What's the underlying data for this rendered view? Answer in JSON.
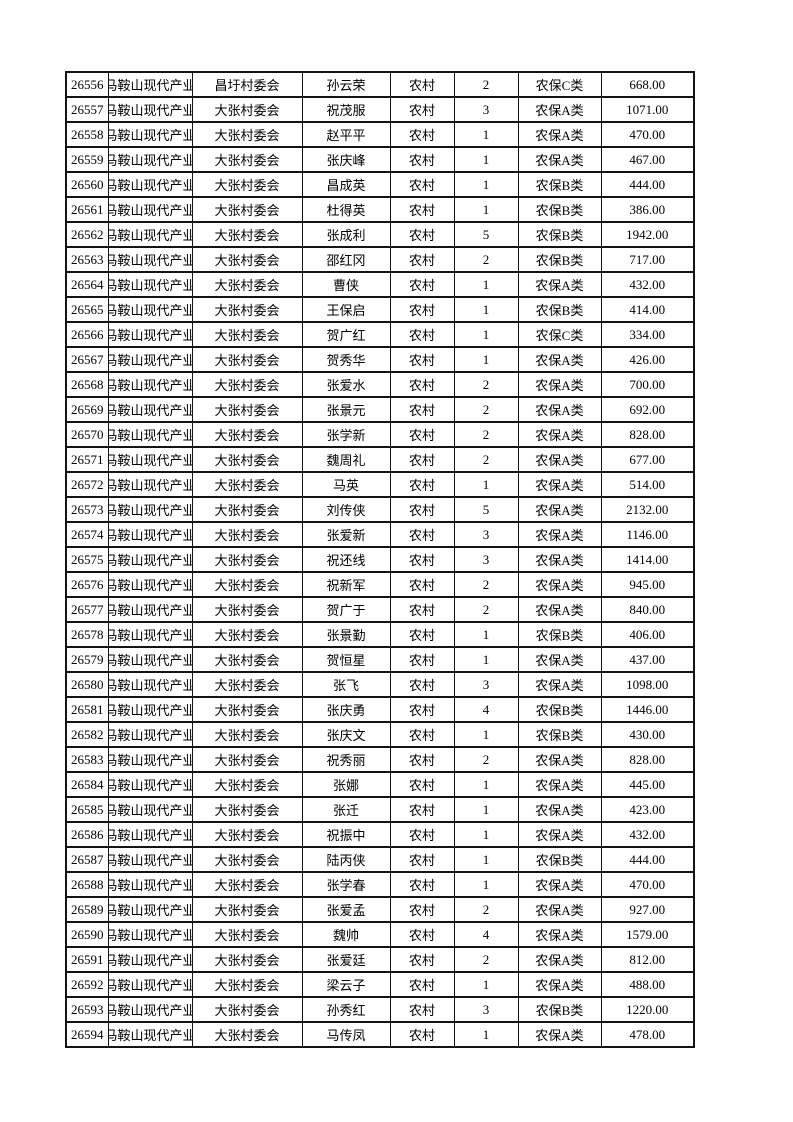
{
  "page": {
    "background_color": "#ffffff",
    "border_color": "#141414",
    "description": "Print-preview page of a rural social insurance roster table"
  },
  "table": {
    "columns": [
      {
        "key": "record-id",
        "label": ""
      },
      {
        "key": "park-name",
        "label": ""
      },
      {
        "key": "village-committee",
        "label": ""
      },
      {
        "key": "person-name",
        "label": ""
      },
      {
        "key": "household-type",
        "label": ""
      },
      {
        "key": "person-count",
        "label": ""
      },
      {
        "key": "insurance-category",
        "label": ""
      },
      {
        "key": "amount",
        "label": ""
      }
    ],
    "park_name_full": "马鞍山现代产业",
    "rows": [
      [
        "26556",
        "马鞍山现代产业",
        "昌圩村委会",
        "孙云荣",
        "农村",
        "2",
        "农保C类",
        "668.00"
      ],
      [
        "26557",
        "马鞍山现代产业",
        "大张村委会",
        "祝茂服",
        "农村",
        "3",
        "农保A类",
        "1071.00"
      ],
      [
        "26558",
        "马鞍山现代产业",
        "大张村委会",
        "赵平平",
        "农村",
        "1",
        "农保A类",
        "470.00"
      ],
      [
        "26559",
        "马鞍山现代产业",
        "大张村委会",
        "张庆峰",
        "农村",
        "1",
        "农保A类",
        "467.00"
      ],
      [
        "26560",
        "马鞍山现代产业",
        "大张村委会",
        "昌成英",
        "农村",
        "1",
        "农保B类",
        "444.00"
      ],
      [
        "26561",
        "马鞍山现代产业",
        "大张村委会",
        "杜得英",
        "农村",
        "1",
        "农保B类",
        "386.00"
      ],
      [
        "26562",
        "马鞍山现代产业",
        "大张村委会",
        "张成利",
        "农村",
        "5",
        "农保B类",
        "1942.00"
      ],
      [
        "26563",
        "马鞍山现代产业",
        "大张村委会",
        "邵红冈",
        "农村",
        "2",
        "农保B类",
        "717.00"
      ],
      [
        "26564",
        "马鞍山现代产业",
        "大张村委会",
        "曹侠",
        "农村",
        "1",
        "农保A类",
        "432.00"
      ],
      [
        "26565",
        "马鞍山现代产业",
        "大张村委会",
        "王保启",
        "农村",
        "1",
        "农保B类",
        "414.00"
      ],
      [
        "26566",
        "马鞍山现代产业",
        "大张村委会",
        "贺广红",
        "农村",
        "1",
        "农保C类",
        "334.00"
      ],
      [
        "26567",
        "马鞍山现代产业",
        "大张村委会",
        "贺秀华",
        "农村",
        "1",
        "农保A类",
        "426.00"
      ],
      [
        "26568",
        "马鞍山现代产业",
        "大张村委会",
        "张爱水",
        "农村",
        "2",
        "农保A类",
        "700.00"
      ],
      [
        "26569",
        "马鞍山现代产业",
        "大张村委会",
        "张景元",
        "农村",
        "2",
        "农保A类",
        "692.00"
      ],
      [
        "26570",
        "马鞍山现代产业",
        "大张村委会",
        "张学新",
        "农村",
        "2",
        "农保A类",
        "828.00"
      ],
      [
        "26571",
        "马鞍山现代产业",
        "大张村委会",
        "魏周礼",
        "农村",
        "2",
        "农保A类",
        "677.00"
      ],
      [
        "26572",
        "马鞍山现代产业",
        "大张村委会",
        "马英",
        "农村",
        "1",
        "农保A类",
        "514.00"
      ],
      [
        "26573",
        "马鞍山现代产业",
        "大张村委会",
        "刘传侠",
        "农村",
        "5",
        "农保A类",
        "2132.00"
      ],
      [
        "26574",
        "马鞍山现代产业",
        "大张村委会",
        "张爱新",
        "农村",
        "3",
        "农保A类",
        "1146.00"
      ],
      [
        "26575",
        "马鞍山现代产业",
        "大张村委会",
        "祝还线",
        "农村",
        "3",
        "农保A类",
        "1414.00"
      ],
      [
        "26576",
        "马鞍山现代产业",
        "大张村委会",
        "祝新军",
        "农村",
        "2",
        "农保A类",
        "945.00"
      ],
      [
        "26577",
        "马鞍山现代产业",
        "大张村委会",
        "贺广于",
        "农村",
        "2",
        "农保A类",
        "840.00"
      ],
      [
        "26578",
        "马鞍山现代产业",
        "大张村委会",
        "张景勤",
        "农村",
        "1",
        "农保B类",
        "406.00"
      ],
      [
        "26579",
        "马鞍山现代产业",
        "大张村委会",
        "贺恒星",
        "农村",
        "1",
        "农保A类",
        "437.00"
      ],
      [
        "26580",
        "马鞍山现代产业",
        "大张村委会",
        "张飞",
        "农村",
        "3",
        "农保A类",
        "1098.00"
      ],
      [
        "26581",
        "马鞍山现代产业",
        "大张村委会",
        "张庆勇",
        "农村",
        "4",
        "农保B类",
        "1446.00"
      ],
      [
        "26582",
        "马鞍山现代产业",
        "大张村委会",
        "张庆文",
        "农村",
        "1",
        "农保B类",
        "430.00"
      ],
      [
        "26583",
        "马鞍山现代产业",
        "大张村委会",
        "祝秀丽",
        "农村",
        "2",
        "农保A类",
        "828.00"
      ],
      [
        "26584",
        "马鞍山现代产业",
        "大张村委会",
        "张娜",
        "农村",
        "1",
        "农保A类",
        "445.00"
      ],
      [
        "26585",
        "马鞍山现代产业",
        "大张村委会",
        "张迁",
        "农村",
        "1",
        "农保A类",
        "423.00"
      ],
      [
        "26586",
        "马鞍山现代产业",
        "大张村委会",
        "祝振中",
        "农村",
        "1",
        "农保A类",
        "432.00"
      ],
      [
        "26587",
        "马鞍山现代产业",
        "大张村委会",
        "陆丙侠",
        "农村",
        "1",
        "农保B类",
        "444.00"
      ],
      [
        "26588",
        "马鞍山现代产业",
        "大张村委会",
        "张学春",
        "农村",
        "1",
        "农保A类",
        "470.00"
      ],
      [
        "26589",
        "马鞍山现代产业",
        "大张村委会",
        "张爱孟",
        "农村",
        "2",
        "农保A类",
        "927.00"
      ],
      [
        "26590",
        "马鞍山现代产业",
        "大张村委会",
        "魏帅",
        "农村",
        "4",
        "农保A类",
        "1579.00"
      ],
      [
        "26591",
        "马鞍山现代产业",
        "大张村委会",
        "张爱廷",
        "农村",
        "2",
        "农保A类",
        "812.00"
      ],
      [
        "26592",
        "马鞍山现代产业",
        "大张村委会",
        "梁云子",
        "农村",
        "1",
        "农保A类",
        "488.00"
      ],
      [
        "26593",
        "马鞍山现代产业",
        "大张村委会",
        "孙秀红",
        "农村",
        "3",
        "农保B类",
        "1220.00"
      ],
      [
        "26594",
        "马鞍山现代产业",
        "大张村委会",
        "马传凤",
        "农村",
        "1",
        "农保A类",
        "478.00"
      ]
    ]
  }
}
